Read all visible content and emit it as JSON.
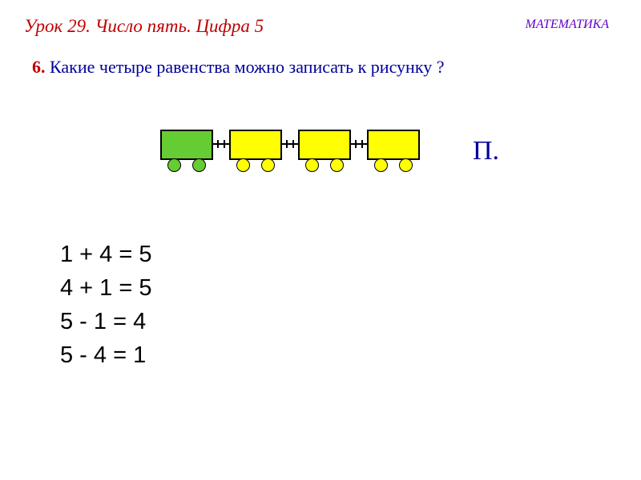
{
  "header": {
    "lesson_title": "Урок 29. Число пять. Цифра 5",
    "lesson_title_color": "#c00000",
    "subject": "МАТЕМАТИКА",
    "subject_color": "#6600cc"
  },
  "question": {
    "number": "6.",
    "number_color": "#c00000",
    "text": " Какие четыре равенства можно записать к рисунку ?",
    "text_color": "#000099"
  },
  "train": {
    "wagons": [
      {
        "body_color": "#66cc33",
        "wheel_color": "#66cc33"
      },
      {
        "body_color": "#ffff00",
        "wheel_color": "#ffff00"
      },
      {
        "body_color": "#ffff00",
        "wheel_color": "#ffff00"
      },
      {
        "body_color": "#ffff00",
        "wheel_color": "#ffff00"
      }
    ],
    "section_label": "П.",
    "section_label_color": "#000099"
  },
  "equations": {
    "lines": [
      "1 + 4 = 5",
      "4 + 1 = 5",
      "5  - 1 = 4",
      "5  - 4 = 1"
    ]
  },
  "colors": {
    "background": "#ffffff",
    "border": "#000000"
  }
}
